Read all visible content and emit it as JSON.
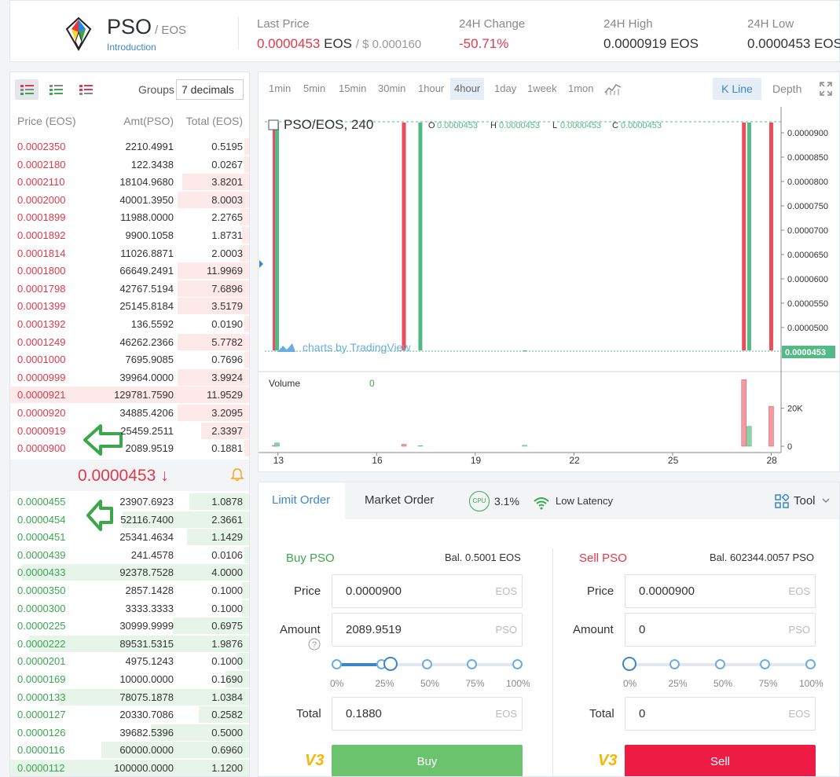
{
  "header": {
    "base": "PSO",
    "quote": "/ EOS",
    "intro_link": "Introduction",
    "stats": [
      {
        "label": "Last Price",
        "value_red": "0.0000453",
        "value_unit": "EOS",
        "value_usd": "/ $ 0.000160"
      },
      {
        "label": "24H Change",
        "value": "-50.71%"
      },
      {
        "label": "24H High",
        "value": "0.0000919  EOS"
      },
      {
        "label": "24H Low",
        "value": "0.0000453  EOS"
      }
    ]
  },
  "orderbook": {
    "groups_label": "Groups",
    "groups_value": "7 decimals",
    "headers": {
      "price": "Price (EOS)",
      "amount": "Amt(PSO)",
      "total": "Total (EOS)"
    },
    "asks": [
      {
        "price": "0.0002350",
        "amount": "2210.4991",
        "total": "0.5195",
        "depth": 0.012
      },
      {
        "price": "0.0002180",
        "amount": "122.3438",
        "total": "0.0267",
        "depth": 0.008
      },
      {
        "price": "0.0002110",
        "amount": "18104.9680",
        "total": "3.8201",
        "depth": 0.28
      },
      {
        "price": "0.0002000",
        "amount": "40001.3950",
        "total": "8.0003",
        "depth": 0.3
      },
      {
        "price": "0.0001899",
        "amount": "11988.0000",
        "total": "2.2765",
        "depth": 0.04
      },
      {
        "price": "0.0001892",
        "amount": "9900.1058",
        "total": "1.8731",
        "depth": 0.03
      },
      {
        "price": "0.0001814",
        "amount": "11026.8871",
        "total": "2.0003",
        "depth": 0.04
      },
      {
        "price": "0.0001800",
        "amount": "66649.2491",
        "total": "11.9969",
        "depth": 0.3
      },
      {
        "price": "0.0001798",
        "amount": "42767.5194",
        "total": "7.6896",
        "depth": 0.3
      },
      {
        "price": "0.0001399",
        "amount": "25145.8184",
        "total": "3.5179",
        "depth": 0.3
      },
      {
        "price": "0.0001392",
        "amount": "136.5592",
        "total": "0.0190",
        "depth": 0.01
      },
      {
        "price": "0.0001249",
        "amount": "46262.2366",
        "total": "5.7782",
        "depth": 0.3
      },
      {
        "price": "0.0001000",
        "amount": "7695.9085",
        "total": "0.7696",
        "depth": 0.02
      },
      {
        "price": "0.0000999",
        "amount": "39964.0000",
        "total": "3.9924",
        "depth": 0.3
      },
      {
        "price": "0.0000921",
        "amount": "129781.7590",
        "total": "11.9529",
        "depth": 1.0
      },
      {
        "price": "0.0000920",
        "amount": "34885.4206",
        "total": "3.2095",
        "depth": 0.3
      },
      {
        "price": "0.0000919",
        "amount": "25459.2511",
        "total": "2.3397",
        "depth": 0.2
      },
      {
        "price": "0.0000900",
        "amount": "2089.9519",
        "total": "0.1881",
        "depth": 0.02
      }
    ],
    "mid_price": "0.0000453 ↓",
    "bids": [
      {
        "price": "0.0000455",
        "amount": "23907.6923",
        "total": "1.0878",
        "depth": 0.25
      },
      {
        "price": "0.0000454",
        "amount": "52116.7400",
        "total": "2.3661",
        "depth": 0.53
      },
      {
        "price": "0.0000451",
        "amount": "25341.4634",
        "total": "1.1429",
        "depth": 0.26
      },
      {
        "price": "0.0000439",
        "amount": "241.4578",
        "total": "0.0106",
        "depth": 0.01
      },
      {
        "price": "0.0000433",
        "amount": "92378.7528",
        "total": "4.0000",
        "depth": 0.95
      },
      {
        "price": "0.0000350",
        "amount": "2857.1428",
        "total": "0.1000",
        "depth": 0.03
      },
      {
        "price": "0.0000300",
        "amount": "3333.3333",
        "total": "0.1000",
        "depth": 0.03
      },
      {
        "price": "0.0000225",
        "amount": "30999.9999",
        "total": "0.6975",
        "depth": 0.32
      },
      {
        "price": "0.0000222",
        "amount": "89531.5315",
        "total": "1.9876",
        "depth": 0.92
      },
      {
        "price": "0.0000201",
        "amount": "4975.1243",
        "total": "0.1000",
        "depth": 0.05
      },
      {
        "price": "0.0000169",
        "amount": "10000.0000",
        "total": "0.1690",
        "depth": 0.1
      },
      {
        "price": "0.0000133",
        "amount": "78075.1878",
        "total": "1.0384",
        "depth": 0.8
      },
      {
        "price": "0.0000127",
        "amount": "20330.7086",
        "total": "0.2582",
        "depth": 0.21
      },
      {
        "price": "0.0000126",
        "amount": "39682.5396",
        "total": "0.5000",
        "depth": 0.41
      },
      {
        "price": "0.0000116",
        "amount": "60000.0000",
        "total": "0.6960",
        "depth": 0.62
      },
      {
        "price": "0.0000112",
        "amount": "100000.0000",
        "total": "1.1200",
        "depth": 1.0
      }
    ]
  },
  "chart": {
    "timeframes": [
      "1min",
      "5min",
      "15min",
      "30min",
      "1hour",
      "4hour",
      "1day",
      "1week",
      "1mon"
    ],
    "active_timeframe": "4hour",
    "kline_label": "K Line",
    "depth_label": "Depth",
    "legend_symbol": "PSO/EOS, 240",
    "ohlc": {
      "o_label": "O",
      "o": "0.0000453",
      "h_label": "H",
      "h": "0.0000453",
      "l_label": "L",
      "l": "0.0000453",
      "c_label": "C",
      "c": "0.0000453"
    },
    "watermark": "charts by TradingView",
    "volume_label": "Volume",
    "volume_value": "0",
    "last_price_tag": "0.0000453",
    "colors": {
      "up": "#53b987",
      "down": "#eb4d5c",
      "vol_up": "#8fd1a4",
      "vol_down": "#f19ca4"
    }
  },
  "chart_data": {
    "type": "candlestick",
    "price_ticks": [
      "0.0000900",
      "0.0000850",
      "0.0000800",
      "0.0000750",
      "0.0000700",
      "0.0000650",
      "0.0000600",
      "0.0000550",
      "0.0000500"
    ],
    "volume_ticks": [
      "20K",
      "0"
    ],
    "x_ticks": [
      "13",
      "16",
      "19",
      "22",
      "25",
      "28"
    ],
    "ylim": [
      4.53e-05,
      9.21e-05
    ],
    "candles": [
      {
        "x": 12.9,
        "o": 9.21e-05,
        "c": 4.53e-05,
        "h": 9.21e-05,
        "l": 4.53e-05,
        "vol": 400
      },
      {
        "x": 12.97,
        "o": 4.53e-05,
        "c": 9.21e-05,
        "h": 9.21e-05,
        "l": 4.53e-05,
        "vol": 1800
      },
      {
        "x": 16.83,
        "o": 9.21e-05,
        "c": 4.53e-05,
        "h": 9.21e-05,
        "l": 4.53e-05,
        "vol": 1000
      },
      {
        "x": 17.33,
        "o": 4.53e-05,
        "c": 9.21e-05,
        "h": 9.21e-05,
        "l": 4.53e-05,
        "vol": 300
      },
      {
        "x": 20.5,
        "o": 4.53e-05,
        "c": 4.53e-05,
        "h": 4.53e-05,
        "l": 4.53e-05,
        "vol": 500
      },
      {
        "x": 27.17,
        "o": 9.21e-05,
        "c": 4.53e-05,
        "h": 9.21e-05,
        "l": 4.53e-05,
        "vol": 35000
      },
      {
        "x": 27.33,
        "o": 4.53e-05,
        "c": 9.21e-05,
        "h": 9.21e-05,
        "l": 4.53e-05,
        "vol": 10500
      },
      {
        "x": 28.0,
        "o": 9.21e-05,
        "c": 4.53e-05,
        "h": 9.21e-05,
        "l": 4.53e-05,
        "vol": 21000
      }
    ],
    "last_price": 4.53e-05
  },
  "trade": {
    "tabs": {
      "limit": "Limit Order",
      "market": "Market Order"
    },
    "cpu_icon": "CPU",
    "cpu_value": "3.1%",
    "latency": "Low Latency",
    "tool": "Tool",
    "buy": {
      "title": "Buy PSO",
      "balance": "Bal. 0.5001 EOS",
      "price_label": "Price",
      "price": "0.0000900",
      "price_unit": "EOS",
      "amount_label": "Amount",
      "amount": "2089.9519",
      "amount_unit": "PSO",
      "total_label": "Total",
      "total": "0.1880",
      "total_unit": "EOS",
      "percent": 0.3,
      "button": "Buy"
    },
    "sell": {
      "title": "Sell PSO",
      "balance": "Bal. 602344.0057 PSO",
      "price_label": "Price",
      "price": "0.0000900",
      "price_unit": "EOS",
      "amount_label": "Amount",
      "amount": "0",
      "amount_unit": "PSO",
      "total_label": "Total",
      "total": "0",
      "total_unit": "EOS",
      "percent": 0,
      "button": "Sell"
    },
    "pct_labels": [
      "0%",
      "25%",
      "50%",
      "75%",
      "100%"
    ],
    "tc_icon": "V3"
  }
}
